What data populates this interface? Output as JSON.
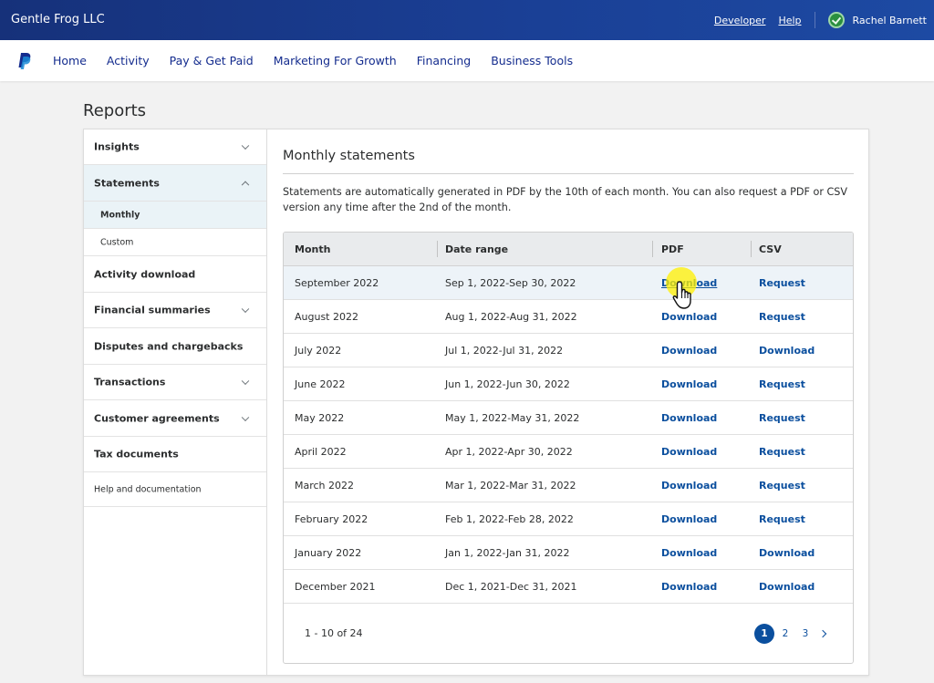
{
  "header": {
    "company": "Gentle Frog LLC",
    "developer_link": "Developer",
    "help_link": "Help",
    "user_name": "Rachel Barnett",
    "background_color": "#1a3f95"
  },
  "nav": {
    "logo_icon": "paypal-logo-icon",
    "items": [
      "Home",
      "Activity",
      "Pay & Get Paid",
      "Marketing For Growth",
      "Financing",
      "Business Tools"
    ]
  },
  "page_title": "Reports",
  "sidebar": {
    "insights": "Insights",
    "statements": "Statements",
    "monthly": "Monthly",
    "custom": "Custom",
    "activity_download": "Activity download",
    "financial_summaries": "Financial summaries",
    "disputes": "Disputes and chargebacks",
    "transactions": "Transactions",
    "customer_agreements": "Customer agreements",
    "tax_documents": "Tax documents",
    "help_docs": "Help and documentation"
  },
  "main": {
    "title": "Monthly statements",
    "description": "Statements are automatically generated in PDF by the 10th of each month. You can also request a PDF or CSV version any time after the 2nd of the month.",
    "table": {
      "headers": [
        "Month",
        "Date range",
        "PDF",
        "CSV"
      ],
      "rows": [
        {
          "month": "September 2022",
          "range": "Sep 1, 2022-Sep 30, 2022",
          "pdf": "Download",
          "csv": "Request"
        },
        {
          "month": "August 2022",
          "range": "Aug 1, 2022-Aug 31, 2022",
          "pdf": "Download",
          "csv": "Request"
        },
        {
          "month": "July 2022",
          "range": "Jul 1, 2022-Jul 31, 2022",
          "pdf": "Download",
          "csv": "Download"
        },
        {
          "month": "June 2022",
          "range": "Jun 1, 2022-Jun 30, 2022",
          "pdf": "Download",
          "csv": "Request"
        },
        {
          "month": "May 2022",
          "range": "May 1, 2022-May 31, 2022",
          "pdf": "Download",
          "csv": "Request"
        },
        {
          "month": "April 2022",
          "range": "Apr 1, 2022-Apr 30, 2022",
          "pdf": "Download",
          "csv": "Request"
        },
        {
          "month": "March 2022",
          "range": "Mar 1, 2022-Mar 31, 2022",
          "pdf": "Download",
          "csv": "Request"
        },
        {
          "month": "February 2022",
          "range": "Feb 1, 2022-Feb 28, 2022",
          "pdf": "Download",
          "csv": "Request"
        },
        {
          "month": "January 2022",
          "range": "Jan 1, 2022-Jan 31, 2022",
          "pdf": "Download",
          "csv": "Download"
        },
        {
          "month": "December 2021",
          "range": "Dec 1, 2021-Dec 31, 2021",
          "pdf": "Download",
          "csv": "Download"
        }
      ]
    },
    "pagination": {
      "range_text": "1 - 10 of 24",
      "pages": [
        "1",
        "2",
        "3"
      ],
      "current_page": "1"
    }
  },
  "colors": {
    "link": "#0b4f9e",
    "nav_text": "#142c8e",
    "active_sidebar": "#eaf3f7"
  }
}
